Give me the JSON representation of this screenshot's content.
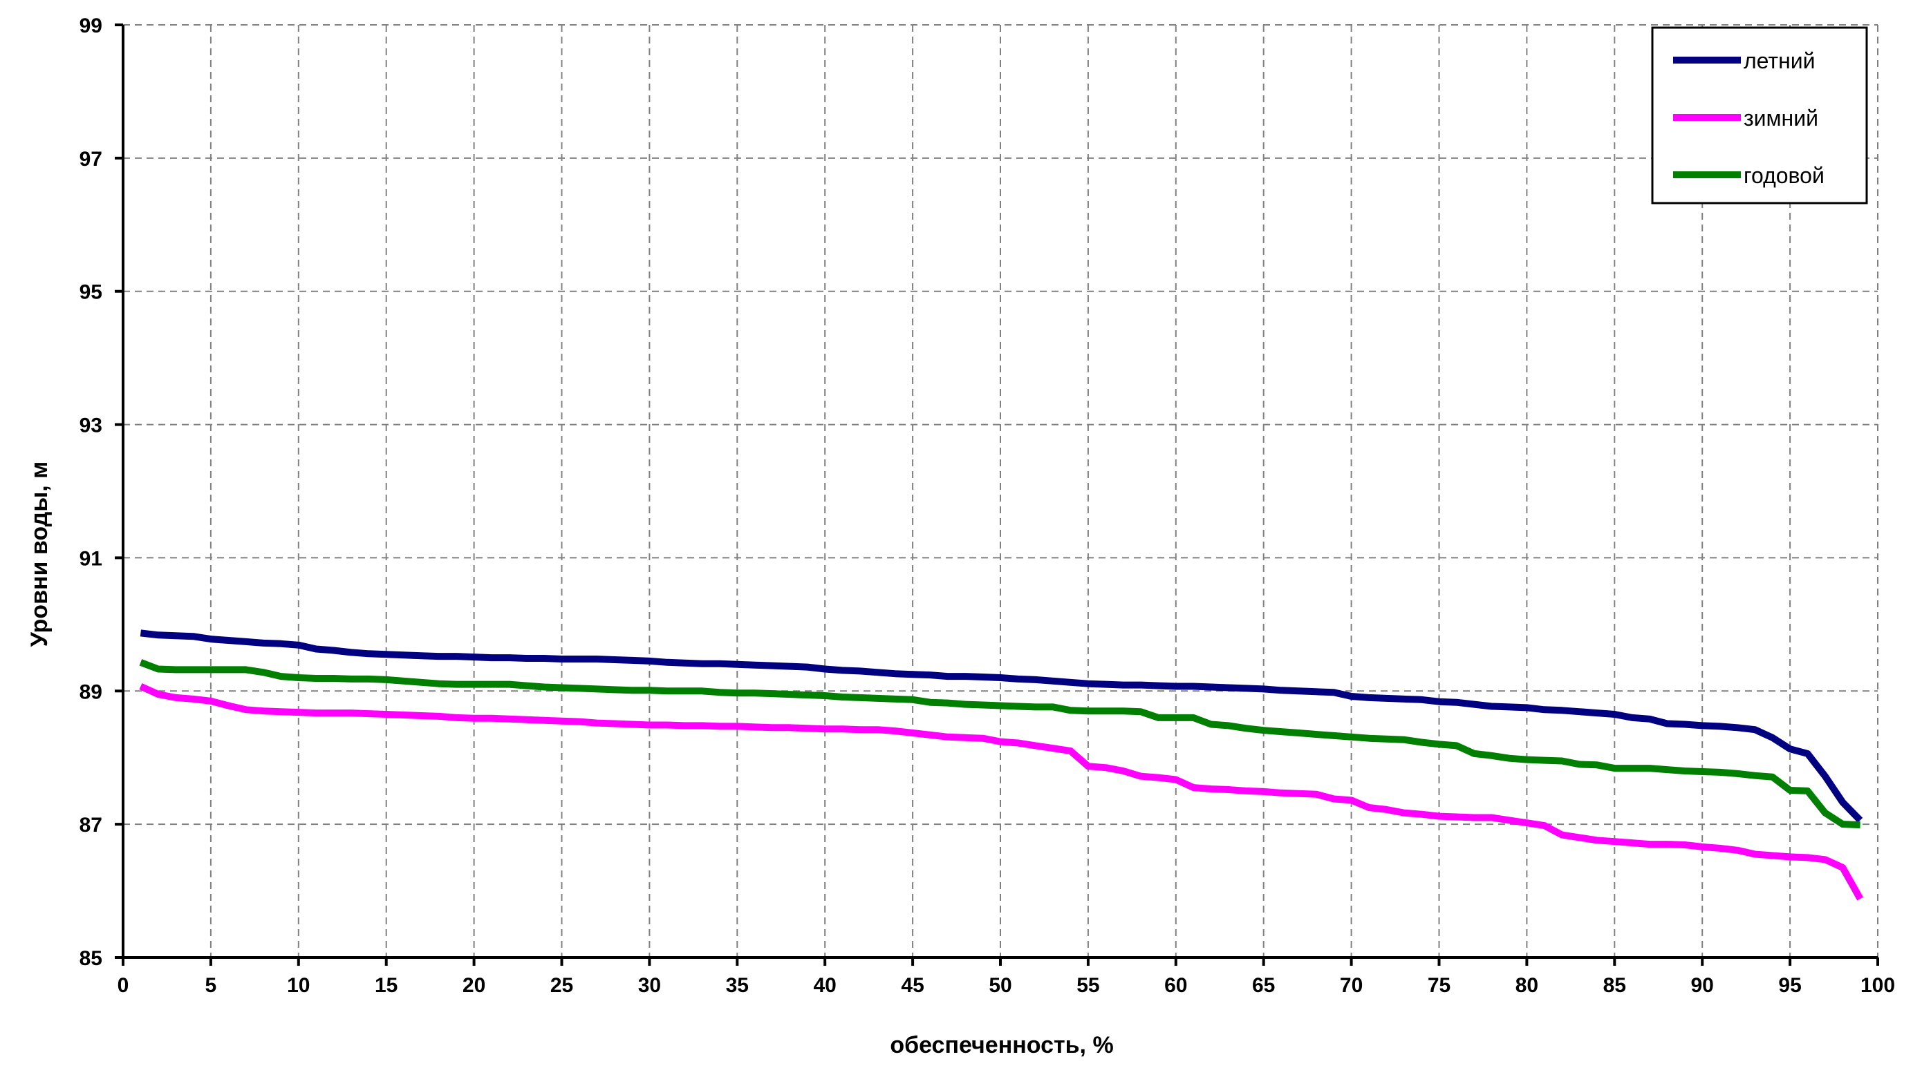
{
  "chart_data": {
    "type": "line",
    "title": "",
    "xlabel": "обеспеченность, %",
    "ylabel": "Уровни воды, м",
    "xlim": [
      0,
      100
    ],
    "ylim": [
      85,
      99
    ],
    "xticks": [
      0,
      5,
      10,
      15,
      20,
      25,
      30,
      35,
      40,
      45,
      50,
      55,
      60,
      65,
      70,
      75,
      80,
      85,
      90,
      95,
      100
    ],
    "yticks": [
      85,
      87,
      89,
      91,
      93,
      95,
      97,
      99
    ],
    "grid": true,
    "legend_position": "top-right",
    "series": [
      {
        "name": "летний",
        "color": "#000080",
        "x": [
          1,
          2,
          3,
          4,
          5,
          6,
          7,
          8,
          9,
          10,
          11,
          12,
          13,
          14,
          15,
          16,
          17,
          18,
          19,
          20,
          21,
          22,
          23,
          24,
          25,
          26,
          27,
          28,
          29,
          30,
          31,
          32,
          33,
          34,
          35,
          36,
          37,
          38,
          39,
          40,
          41,
          42,
          43,
          44,
          45,
          46,
          47,
          48,
          49,
          50,
          51,
          52,
          53,
          54,
          55,
          56,
          57,
          58,
          59,
          60,
          61,
          62,
          63,
          64,
          65,
          66,
          67,
          68,
          69,
          70,
          71,
          72,
          73,
          74,
          75,
          76,
          77,
          78,
          79,
          80,
          81,
          82,
          83,
          84,
          85,
          86,
          87,
          88,
          89,
          90,
          91,
          92,
          93,
          94,
          95,
          96,
          97,
          98,
          99
        ],
        "values": [
          89.87,
          89.84,
          89.83,
          89.82,
          89.78,
          89.76,
          89.74,
          89.72,
          89.71,
          89.69,
          89.63,
          89.61,
          89.58,
          89.56,
          89.55,
          89.54,
          89.53,
          89.52,
          89.52,
          89.51,
          89.5,
          89.5,
          89.49,
          89.49,
          89.48,
          89.48,
          89.48,
          89.47,
          89.46,
          89.45,
          89.43,
          89.42,
          89.41,
          89.41,
          89.4,
          89.39,
          89.38,
          89.37,
          89.36,
          89.33,
          89.31,
          89.3,
          89.28,
          89.26,
          89.25,
          89.24,
          89.22,
          89.22,
          89.21,
          89.2,
          89.18,
          89.17,
          89.15,
          89.13,
          89.11,
          89.1,
          89.09,
          89.09,
          89.08,
          89.07,
          89.07,
          89.06,
          89.05,
          89.04,
          89.03,
          89.01,
          89.0,
          88.99,
          88.98,
          88.92,
          88.9,
          88.89,
          88.88,
          88.87,
          88.84,
          88.83,
          88.8,
          88.77,
          88.76,
          88.75,
          88.72,
          88.71,
          88.69,
          88.67,
          88.65,
          88.6,
          88.58,
          88.51,
          88.5,
          88.48,
          88.47,
          88.45,
          88.42,
          88.3,
          88.13,
          88.06,
          87.72,
          87.33,
          87.06
        ]
      },
      {
        "name": "зимний",
        "color": "#ff00ff",
        "x": [
          1,
          2,
          3,
          4,
          5,
          6,
          7,
          8,
          9,
          10,
          11,
          12,
          13,
          14,
          15,
          16,
          17,
          18,
          19,
          20,
          21,
          22,
          23,
          24,
          25,
          26,
          27,
          28,
          29,
          30,
          31,
          32,
          33,
          34,
          35,
          36,
          37,
          38,
          39,
          40,
          41,
          42,
          43,
          44,
          45,
          46,
          47,
          48,
          49,
          50,
          51,
          52,
          53,
          54,
          55,
          56,
          57,
          58,
          59,
          60,
          61,
          62,
          63,
          64,
          65,
          66,
          67,
          68,
          69,
          70,
          71,
          72,
          73,
          74,
          75,
          76,
          77,
          78,
          79,
          80,
          81,
          82,
          83,
          84,
          85,
          86,
          87,
          88,
          89,
          90,
          91,
          92,
          93,
          94,
          95,
          96,
          97,
          98,
          99
        ],
        "values": [
          89.07,
          88.95,
          88.9,
          88.88,
          88.85,
          88.78,
          88.72,
          88.7,
          88.69,
          88.68,
          88.67,
          88.67,
          88.67,
          88.66,
          88.65,
          88.64,
          88.63,
          88.62,
          88.6,
          88.59,
          88.59,
          88.58,
          88.57,
          88.56,
          88.55,
          88.54,
          88.52,
          88.51,
          88.5,
          88.49,
          88.49,
          88.48,
          88.48,
          88.47,
          88.47,
          88.46,
          88.45,
          88.45,
          88.44,
          88.43,
          88.43,
          88.42,
          88.42,
          88.4,
          88.37,
          88.34,
          88.31,
          88.3,
          88.29,
          88.24,
          88.22,
          88.18,
          88.14,
          88.1,
          87.87,
          87.85,
          87.8,
          87.72,
          87.7,
          87.67,
          87.55,
          87.53,
          87.52,
          87.5,
          87.49,
          87.47,
          87.46,
          87.45,
          87.38,
          87.36,
          87.25,
          87.22,
          87.17,
          87.15,
          87.12,
          87.11,
          87.1,
          87.1,
          87.06,
          87.02,
          86.98,
          86.84,
          86.8,
          86.76,
          86.74,
          86.72,
          86.7,
          86.7,
          86.69,
          86.66,
          86.64,
          86.61,
          86.55,
          86.53,
          86.51,
          86.5,
          86.47,
          86.35,
          85.88
        ]
      },
      {
        "name": "годовой",
        "color": "#007f00",
        "x": [
          1,
          2,
          3,
          4,
          5,
          6,
          7,
          8,
          9,
          10,
          11,
          12,
          13,
          14,
          15,
          16,
          17,
          18,
          19,
          20,
          21,
          22,
          23,
          24,
          25,
          26,
          27,
          28,
          29,
          30,
          31,
          32,
          33,
          34,
          35,
          36,
          37,
          38,
          39,
          40,
          41,
          42,
          43,
          44,
          45,
          46,
          47,
          48,
          49,
          50,
          51,
          52,
          53,
          54,
          55,
          56,
          57,
          58,
          59,
          60,
          61,
          62,
          63,
          64,
          65,
          66,
          67,
          68,
          69,
          70,
          71,
          72,
          73,
          74,
          75,
          76,
          77,
          78,
          79,
          80,
          81,
          82,
          83,
          84,
          85,
          86,
          87,
          88,
          89,
          90,
          91,
          92,
          93,
          94,
          95,
          96,
          97,
          98,
          99
        ],
        "values": [
          89.43,
          89.33,
          89.32,
          89.32,
          89.32,
          89.32,
          89.32,
          89.28,
          89.22,
          89.2,
          89.19,
          89.19,
          89.18,
          89.18,
          89.17,
          89.15,
          89.13,
          89.11,
          89.1,
          89.1,
          89.1,
          89.1,
          89.08,
          89.06,
          89.05,
          89.04,
          89.03,
          89.02,
          89.01,
          89.01,
          89.0,
          89.0,
          89.0,
          88.98,
          88.97,
          88.97,
          88.96,
          88.95,
          88.94,
          88.93,
          88.91,
          88.9,
          88.89,
          88.88,
          88.87,
          88.83,
          88.82,
          88.8,
          88.79,
          88.78,
          88.77,
          88.76,
          88.76,
          88.71,
          88.7,
          88.7,
          88.7,
          88.69,
          88.6,
          88.6,
          88.6,
          88.5,
          88.48,
          88.44,
          88.41,
          88.39,
          88.37,
          88.35,
          88.33,
          88.31,
          88.29,
          88.28,
          88.27,
          88.23,
          88.2,
          88.18,
          88.06,
          88.03,
          87.99,
          87.97,
          87.96,
          87.95,
          87.9,
          87.89,
          87.84,
          87.84,
          87.84,
          87.82,
          87.8,
          87.79,
          87.78,
          87.76,
          87.73,
          87.71,
          87.51,
          87.5,
          87.17,
          87.0,
          86.99
        ]
      }
    ]
  }
}
